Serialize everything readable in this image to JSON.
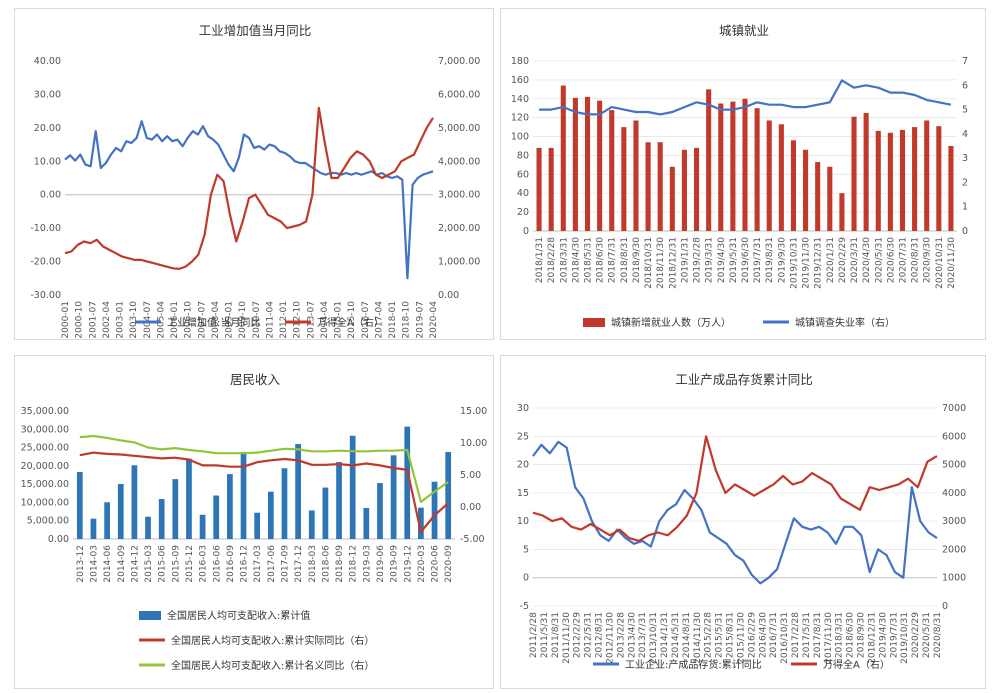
{
  "colors": {
    "blue": "#4472c4",
    "red": "#c0392b",
    "green": "#92c43c",
    "bar_blue": "#2e75b6",
    "bar_red": "#c0392b",
    "axis": "#bfbfbf"
  },
  "chart_data": [
    {
      "id": "industrial",
      "type": "line",
      "title": "工业增加值当月同比",
      "ylim": [
        -30,
        40
      ],
      "yticks": [
        "-30.00",
        "-20.00",
        "-10.00",
        "0.00",
        "10.00",
        "20.00",
        "30.00",
        "40.00"
      ],
      "y2lim": [
        0,
        7000
      ],
      "y2ticks": [
        "0.00",
        "1,000.00",
        "2,000.00",
        "3,000.00",
        "4,000.00",
        "5,000.00",
        "6,000.00",
        "7,000.00"
      ],
      "x_tick_labels": [
        "2000-01",
        "2000-10",
        "2001-07",
        "2002-04",
        "2003-01",
        "2003-10",
        "2004-07",
        "2005-04",
        "2006-01",
        "2006-10",
        "2007-07",
        "2008-04",
        "2009-01",
        "2009-10",
        "2010-07",
        "2011-04",
        "2012-01",
        "2012-10",
        "2013-07",
        "2014-04",
        "2015-01",
        "2015-10",
        "2016-07",
        "2017-04",
        "2018-01",
        "2018-10",
        "2019-07",
        "2020-04"
      ],
      "series": [
        {
          "name": "工业增加值:当月同比",
          "axis": "left",
          "color": "blue",
          "values": [
            10.5,
            11.8,
            10.2,
            12.0,
            9.0,
            8.5,
            19.0,
            8.0,
            9.5,
            12.0,
            14.0,
            13.0,
            16.0,
            15.5,
            17.0,
            22.0,
            17.0,
            16.5,
            18.0,
            16.0,
            17.5,
            16.0,
            16.5,
            14.5,
            17.0,
            19.0,
            18.0,
            20.5,
            17.5,
            16.5,
            15.0,
            12.0,
            9.0,
            7.0,
            11.0,
            18.0,
            17.0,
            14.0,
            14.5,
            13.5,
            15.0,
            14.5,
            13.0,
            12.5,
            11.5,
            10.0,
            9.5,
            9.5,
            8.5,
            7.5,
            6.5,
            6.0,
            6.5,
            6.5,
            6.0,
            6.5,
            6.0,
            6.5,
            6.0,
            6.5,
            7.0,
            6.0,
            6.5,
            5.5,
            5.0,
            5.5,
            4.5,
            -25.0,
            3.0,
            5.0,
            6.0,
            6.5,
            7.0
          ]
        },
        {
          "name": "万得全A（右）",
          "axis": "right",
          "color": "red",
          "values": [
            1250,
            1300,
            1500,
            1600,
            1550,
            1650,
            1450,
            1350,
            1250,
            1150,
            1100,
            1050,
            1050,
            1000,
            950,
            900,
            850,
            800,
            780,
            850,
            1000,
            1200,
            1800,
            3000,
            3600,
            3400,
            2400,
            1600,
            2200,
            2900,
            3000,
            2700,
            2400,
            2300,
            2200,
            2000,
            2050,
            2100,
            2200,
            3000,
            5600,
            4500,
            3500,
            3500,
            3800,
            4100,
            4300,
            4200,
            4000,
            3600,
            3500,
            3600,
            3700,
            4000,
            4100,
            4200,
            4600,
            5000,
            5300
          ]
        }
      ]
    },
    {
      "id": "employment",
      "type": "bar",
      "title": "城镇就业",
      "ylim": [
        0,
        180
      ],
      "yticks": [
        "0",
        "20",
        "40",
        "60",
        "80",
        "100",
        "120",
        "140",
        "160",
        "180"
      ],
      "y2lim": [
        0,
        7
      ],
      "y2ticks": [
        "0",
        "1",
        "2",
        "3",
        "4",
        "5",
        "6",
        "7"
      ],
      "categories": [
        "2018/1/31",
        "2018/2/28",
        "2018/3/31",
        "2018/4/30",
        "2018/5/31",
        "2018/6/30",
        "2018/7/31",
        "2018/8/31",
        "2018/9/30",
        "2018/10/31",
        "2018/11/30",
        "2018/12/31",
        "2019/1/31",
        "2019/2/28",
        "2019/3/31",
        "2019/4/30",
        "2019/5/31",
        "2019/6/30",
        "2019/7/31",
        "2019/8/31",
        "2019/9/30",
        "2019/10/31",
        "2019/11/30",
        "2019/12/31",
        "2020/1/31",
        "2020/2/29",
        "2020/3/31",
        "2020/4/30",
        "2020/5/31",
        "2020/6/30",
        "2020/7/31",
        "2020/8/31",
        "2020/9/30",
        "2020/10/31",
        "2020/11/30"
      ],
      "series": [
        {
          "name": "城镇新增就业人数（万人）",
          "kind": "bar",
          "axis": "left",
          "color": "bar_red",
          "values": [
            88,
            88,
            154,
            141,
            142,
            138,
            128,
            110,
            117,
            94,
            94,
            68,
            86,
            88,
            150,
            135,
            137,
            140,
            130,
            117,
            113,
            96,
            86,
            73,
            68,
            40,
            121,
            125,
            106,
            104,
            107,
            110,
            117,
            111,
            90
          ]
        },
        {
          "name": "城镇调查失业率（右）",
          "kind": "line",
          "axis": "right",
          "color": "blue",
          "values": [
            5.0,
            5.0,
            5.1,
            4.9,
            4.8,
            4.8,
            5.1,
            5.0,
            4.9,
            4.9,
            4.8,
            4.9,
            5.1,
            5.3,
            5.2,
            5.0,
            5.0,
            5.1,
            5.3,
            5.2,
            5.2,
            5.1,
            5.1,
            5.2,
            5.3,
            6.2,
            5.9,
            6.0,
            5.9,
            5.7,
            5.7,
            5.6,
            5.4,
            5.3,
            5.2
          ]
        }
      ]
    },
    {
      "id": "income",
      "type": "bar",
      "title": "居民收入",
      "ylim": [
        0,
        35000
      ],
      "yticks": [
        "0.00",
        "5,000.00",
        "10,000.00",
        "15,000.00",
        "20,000.00",
        "25,000.00",
        "30,000.00",
        "35,000.00"
      ],
      "y2lim": [
        -5,
        15
      ],
      "y2ticks": [
        "-5.00",
        "0.00",
        "5.00",
        "10.00",
        "15.00"
      ],
      "categories": [
        "2013-12",
        "2014-03",
        "2014-06",
        "2014-09",
        "2014-12",
        "2015-03",
        "2015-06",
        "2015-09",
        "2015-12",
        "2016-03",
        "2016-06",
        "2016-09",
        "2016-12",
        "2017-03",
        "2017-06",
        "2017-09",
        "2017-12",
        "2018-03",
        "2018-06",
        "2018-09",
        "2018-12",
        "2019-03",
        "2019-06",
        "2019-09",
        "2019-12",
        "2020-03",
        "2020-06",
        "2020-09"
      ],
      "series": [
        {
          "name": "全国居民人均可支配收入:累计值",
          "kind": "bar",
          "axis": "left",
          "color": "bar_blue",
          "values": [
            18311,
            5562,
            10049,
            15051,
            20167,
            6087,
            10931,
            16367,
            21966,
            6619,
            11886,
            17735,
            23821,
            7184,
            12932,
            19342,
            25974,
            7815,
            14063,
            21035,
            28228,
            8493,
            15294,
            22882,
            30733,
            8561,
            15666,
            23781
          ]
        },
        {
          "name": "全国居民人均可支配收入:累计实际同比（右）",
          "kind": "line",
          "axis": "right",
          "color": "red",
          "values": [
            8.1,
            8.5,
            8.3,
            8.2,
            8.0,
            7.8,
            7.6,
            7.7,
            7.4,
            6.5,
            6.5,
            6.3,
            6.3,
            7.0,
            7.3,
            7.5,
            7.3,
            6.6,
            6.6,
            6.7,
            6.5,
            6.8,
            6.5,
            6.1,
            5.8,
            -3.9,
            -1.3,
            0.6
          ]
        },
        {
          "name": "全国居民人均可支配收入:累计名义同比（右）",
          "kind": "line",
          "axis": "right",
          "color": "green",
          "values": [
            10.9,
            11.1,
            10.8,
            10.4,
            10.1,
            9.3,
            9.0,
            9.2,
            8.9,
            8.7,
            8.4,
            8.4,
            8.4,
            8.5,
            8.8,
            9.1,
            9.0,
            8.7,
            8.7,
            8.8,
            8.7,
            8.7,
            8.8,
            8.8,
            8.9,
            0.8,
            2.4,
            3.9
          ]
        }
      ]
    },
    {
      "id": "inventory",
      "type": "line",
      "title": "工业产成品存货累计同比",
      "ylim": [
        -5,
        30
      ],
      "yticks": [
        "-5",
        "0",
        "5",
        "10",
        "15",
        "20",
        "25",
        "30"
      ],
      "y2lim": [
        0,
        7000
      ],
      "y2ticks": [
        "0",
        "1000",
        "2000",
        "3000",
        "4000",
        "5000",
        "6000",
        "7000"
      ],
      "x_tick_labels": [
        "2011/2/28",
        "2011/5/31",
        "2011/8/31",
        "2011/11/30",
        "2012/2/29",
        "2012/5/31",
        "2012/8/31",
        "2012/11/30",
        "2013/2/28",
        "2013/4/30",
        "2013/7/31",
        "2013/10/31",
        "2014/1/31",
        "2014/5/31",
        "2014/8/31",
        "2014/11/30",
        "2015/2/28",
        "2015/5/31",
        "2015/8/31",
        "2015/11/30",
        "2016/2/29",
        "2016/4/30",
        "2016/7/31",
        "2016/10/31",
        "2017/2/28",
        "2017/5/31",
        "2017/8/31",
        "2017/11/30",
        "2018/3/31",
        "2018/6/30",
        "2018/9/30",
        "2018/12/31",
        "2019/4/30",
        "2019/7/31",
        "2019/10/31",
        "2020/2/29",
        "2020/5/31",
        "2020/8/31"
      ],
      "series": [
        {
          "name": "工业企业:产成品存货:累计同比",
          "axis": "left",
          "color": "blue",
          "values": [
            21.5,
            23.5,
            22.0,
            24.0,
            23.0,
            16.0,
            14.0,
            10.0,
            7.5,
            6.5,
            8.5,
            7.0,
            6.0,
            6.5,
            5.5,
            10.0,
            12.0,
            13.0,
            15.5,
            14.0,
            12.0,
            8.0,
            7.0,
            6.0,
            4.0,
            3.0,
            0.5,
            -1.0,
            0.0,
            1.5,
            6.0,
            10.5,
            9.0,
            8.5,
            9.0,
            8.0,
            6.0,
            9.0,
            9.0,
            7.5,
            1.0,
            5.0,
            4.0,
            1.0,
            0.0,
            16.0,
            10.0,
            8.0,
            7.0
          ]
        },
        {
          "name": "万得全A（右）",
          "axis": "right",
          "color": "red",
          "values": [
            3300,
            3200,
            3000,
            3100,
            2800,
            2700,
            2900,
            2700,
            2500,
            2700,
            2400,
            2300,
            2500,
            2600,
            2500,
            2800,
            3200,
            4000,
            6000,
            4800,
            4000,
            4300,
            4100,
            3900,
            4100,
            4300,
            4600,
            4300,
            4400,
            4700,
            4500,
            4300,
            3800,
            3600,
            3400,
            4200,
            4100,
            4200,
            4300,
            4500,
            4200,
            5100,
            5300
          ]
        }
      ]
    }
  ]
}
